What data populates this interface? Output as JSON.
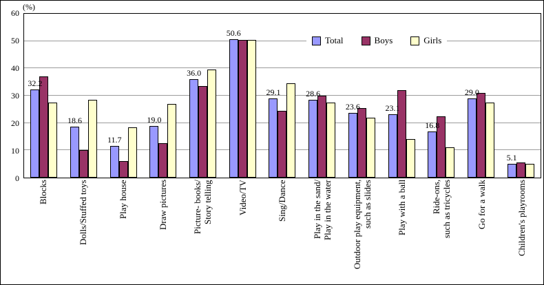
{
  "chart_data": {
    "type": "bar",
    "title": "",
    "unit_label": "(%)",
    "xlabel": "",
    "ylabel": "",
    "ylim": [
      0,
      60
    ],
    "yticks": [
      0,
      10,
      20,
      30,
      40,
      50,
      60
    ],
    "grid": true,
    "legend_position": "top-right-inside",
    "categories": [
      "Blocks",
      "Dolls/Stuffed toys",
      "Play house",
      "Draw pictures",
      "Picture- books/\nStory telling",
      "Video/TV",
      "Sing/Dance",
      "Play in the sand/\nPlay in the water",
      "Outdoor play equipment,\nsuch as slides",
      "Play with a ball",
      "Ride-ons,\nsuch as tricycles",
      "Go for a walk",
      "Children's playrooms"
    ],
    "series": [
      {
        "name": "Total",
        "color": "#9999ff",
        "values": [
          32.2,
          18.6,
          11.7,
          19.0,
          36.0,
          50.6,
          29.1,
          28.6,
          23.6,
          23.1,
          16.8,
          29.0,
          5.1
        ]
      },
      {
        "name": "Boys",
        "color": "#993366",
        "values": [
          37.0,
          10.0,
          6.0,
          12.5,
          33.5,
          50.5,
          24.5,
          30.0,
          25.5,
          32.0,
          22.5,
          31.0,
          5.5
        ]
      },
      {
        "name": "Girls",
        "color": "#ffffcc",
        "values": [
          27.5,
          28.5,
          18.5,
          27.0,
          39.5,
          50.5,
          34.5,
          27.5,
          22.0,
          14.0,
          11.0,
          27.5,
          5.0
        ]
      }
    ],
    "data_labels": [
      "32.2",
      "18.6",
      "11.7",
      "19.0",
      "36.0",
      "50.6",
      "29.1",
      "28.6",
      "23.6",
      "23.1",
      "16.8",
      "29.0",
      "5.1"
    ],
    "data_label_series": "Total",
    "colors": {
      "axis": "#000000",
      "gridline": "#9b9b9b",
      "background": "#ffffff"
    }
  }
}
